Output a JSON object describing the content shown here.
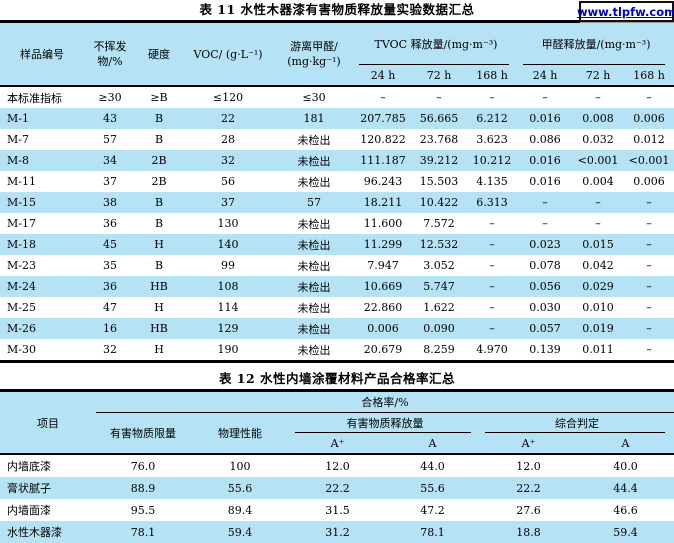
{
  "watermark": {
    "text": "www.tlpfw.com",
    "color": "#0000cc"
  },
  "colors": {
    "stripe_blue": "#b5e2f4",
    "header_blue": "#b5e2f4",
    "rule_black": "#000000"
  },
  "table11": {
    "title": "表 11  水性木器漆有害物质释放量实验数据汇总",
    "headers": {
      "sample_id": "样品编号",
      "nonvolatile_line1": "不挥发",
      "nonvolatile_line2": "物/%",
      "hardness": "硬度",
      "voc": "VOC/ (g·L⁻¹)",
      "free_formaldehyde_line1": "游离甲醛/",
      "free_formaldehyde_line2": "(mg·kg⁻¹)",
      "tvoc_group": "TVOC 释放量/(mg·m⁻³)",
      "formaldehyde_group": "甲醛释放量/(mg·m⁻³)",
      "sub": [
        "24 h",
        "72 h",
        "168 h",
        "24 h",
        "72 h",
        "168 h"
      ]
    },
    "rows": [
      [
        "本标准指标",
        "≥30",
        "≥B",
        "≤120",
        "≤30",
        "–",
        "–",
        "–",
        "–",
        "–",
        "–"
      ],
      [
        "M-1",
        "43",
        "B",
        "22",
        "181",
        "207.785",
        "56.665",
        "6.212",
        "0.016",
        "0.008",
        "0.006"
      ],
      [
        "M-7",
        "57",
        "B",
        "28",
        "未检出",
        "120.822",
        "23.768",
        "3.623",
        "0.086",
        "0.032",
        "0.012"
      ],
      [
        "M-8",
        "34",
        "2B",
        "32",
        "未检出",
        "111.187",
        "39.212",
        "10.212",
        "0.016",
        "<0.001",
        "<0.001"
      ],
      [
        "M-11",
        "37",
        "2B",
        "56",
        "未检出",
        "96.243",
        "15.503",
        "4.135",
        "0.016",
        "0.004",
        "0.006"
      ],
      [
        "M-15",
        "38",
        "B",
        "37",
        "57",
        "18.211",
        "10.422",
        "6.313",
        "–",
        "–",
        "–"
      ],
      [
        "M-17",
        "36",
        "B",
        "130",
        "未检出",
        "11.600",
        "7.572",
        "–",
        "–",
        "–",
        "–"
      ],
      [
        "M-18",
        "45",
        "H",
        "140",
        "未检出",
        "11.299",
        "12.532",
        "–",
        "0.023",
        "0.015",
        "–"
      ],
      [
        "M-23",
        "35",
        "B",
        "99",
        "未检出",
        "7.947",
        "3.052",
        "–",
        "0.078",
        "0.042",
        "–"
      ],
      [
        "M-24",
        "36",
        "HB",
        "108",
        "未检出",
        "10.669",
        "5.747",
        "–",
        "0.056",
        "0.029",
        "–"
      ],
      [
        "M-25",
        "47",
        "H",
        "114",
        "未检出",
        "22.860",
        "1.622",
        "–",
        "0.030",
        "0.010",
        "–"
      ],
      [
        "M-26",
        "16",
        "HB",
        "129",
        "未检出",
        "0.006",
        "0.090",
        "–",
        "0.057",
        "0.019",
        "–"
      ],
      [
        "M-30",
        "32",
        "H",
        "190",
        "未检出",
        "20.679",
        "8.259",
        "4.970",
        "0.139",
        "0.011",
        "–"
      ]
    ]
  },
  "table12": {
    "title": "表 12 水性内墙涂覆材料产品合格率汇总",
    "headers": {
      "item": "项目",
      "pass_rate_group": "合格率/%",
      "hazard_limit": "有害物质限量",
      "physical": "物理性能",
      "release_group": "有害物质释放量",
      "overall_group": "综合判定",
      "sub": [
        "A⁺",
        "A",
        "A⁺",
        "A"
      ]
    },
    "rows": [
      [
        "内墙底漆",
        "76.0",
        "100",
        "12.0",
        "44.0",
        "12.0",
        "40.0"
      ],
      [
        "膏状腻子",
        "88.9",
        "55.6",
        "22.2",
        "55.6",
        "22.2",
        "44.4"
      ],
      [
        "内墙面漆",
        "95.5",
        "89.4",
        "31.5",
        "47.2",
        "27.6",
        "46.6"
      ],
      [
        "水性木器漆",
        "78.1",
        "59.4",
        "31.2",
        "78.1",
        "18.8",
        "59.4"
      ]
    ]
  }
}
